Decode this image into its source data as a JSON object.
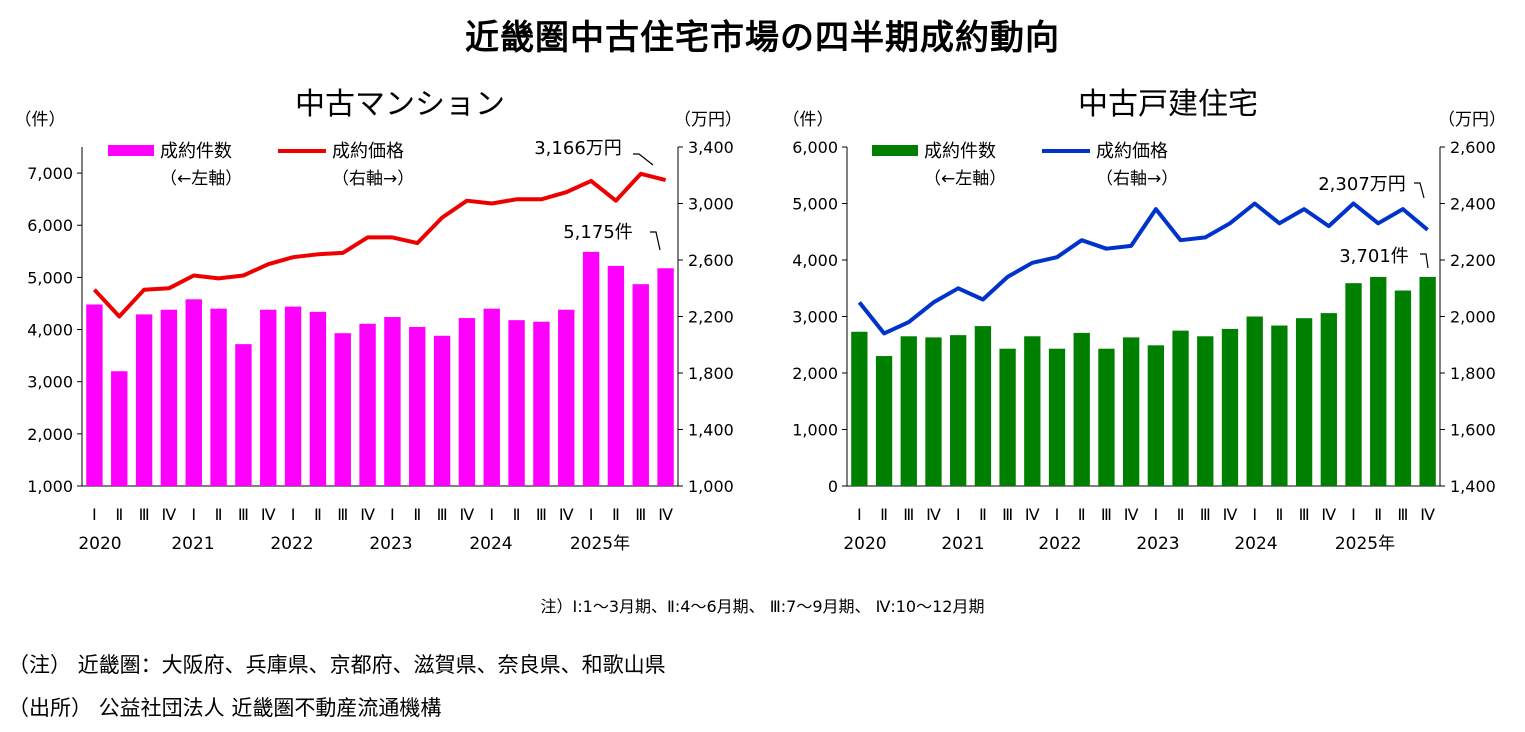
{
  "title": "近畿圏中古住宅市場の四半期成約動向",
  "period_note": "注）Ⅰ:1～3月期、Ⅱ:4～6月期、 Ⅲ:7～9月期、 Ⅳ:10～12月期",
  "footnote": "（注） 近畿圏：大阪府、兵庫県、京都府、滋賀県、奈良県、和歌山県",
  "source": "（出所） 公益社団法人 近畿圏不動産流通機構",
  "colors": {
    "mansion_bar": "#ff00ff",
    "mansion_line": "#ee0000",
    "house_bar": "#008000",
    "house_line": "#0033cc"
  },
  "chart_data": [
    {
      "type": "bar+line",
      "title": "中古マンション",
      "left_unit": "（件）",
      "right_unit": "（万円）",
      "quarter_labels": [
        "Ⅰ",
        "Ⅱ",
        "Ⅲ",
        "Ⅳ",
        "Ⅰ",
        "Ⅱ",
        "Ⅲ",
        "Ⅳ",
        "Ⅰ",
        "Ⅱ",
        "Ⅲ",
        "Ⅳ",
        "Ⅰ",
        "Ⅱ",
        "Ⅲ",
        "Ⅳ",
        "Ⅰ",
        "Ⅱ",
        "Ⅲ",
        "Ⅳ",
        "Ⅰ",
        "Ⅱ",
        "Ⅲ",
        "Ⅳ"
      ],
      "year_labels": [
        "2020",
        "2021",
        "2022",
        "2023",
        "2024",
        "2025年"
      ],
      "left_axis": {
        "min": 1000,
        "max": 7500,
        "ticks": [
          "1,000",
          "2,000",
          "3,000",
          "4,000",
          "5,000",
          "6,000",
          "7,000"
        ],
        "tick_values": [
          1000,
          2000,
          3000,
          4000,
          5000,
          6000,
          7000
        ]
      },
      "right_axis": {
        "min": 1000,
        "max": 3400,
        "ticks": [
          "1,000",
          "1,400",
          "1,800",
          "2,200",
          "2,600",
          "3,000",
          "3,400"
        ],
        "tick_values": [
          1000,
          1400,
          1800,
          2200,
          2600,
          3000,
          3400
        ]
      },
      "bars": {
        "name": "成約件数",
        "axis_note": "（←左軸）",
        "values": [
          4480,
          3200,
          4290,
          4380,
          4580,
          4400,
          3720,
          4380,
          4440,
          4340,
          3930,
          4110,
          4240,
          4050,
          3880,
          4220,
          4400,
          4180,
          4150,
          4380,
          5490,
          5220,
          4870,
          5175
        ]
      },
      "line": {
        "name": "成約価格",
        "axis_note": "（右軸→）",
        "values": [
          2390,
          2200,
          2390,
          2400,
          2490,
          2470,
          2490,
          2570,
          2620,
          2640,
          2650,
          2760,
          2760,
          2720,
          2900,
          3020,
          3000,
          3030,
          3030,
          3080,
          3160,
          3020,
          3210,
          3166
        ]
      },
      "annotation_price": "3,166万円",
      "annotation_count": "5,175件"
    },
    {
      "type": "bar+line",
      "title": "中古戸建住宅",
      "left_unit": "（件）",
      "right_unit": "（万円）",
      "quarter_labels": [
        "Ⅰ",
        "Ⅱ",
        "Ⅲ",
        "Ⅳ",
        "Ⅰ",
        "Ⅱ",
        "Ⅲ",
        "Ⅳ",
        "Ⅰ",
        "Ⅱ",
        "Ⅲ",
        "Ⅳ",
        "Ⅰ",
        "Ⅱ",
        "Ⅲ",
        "Ⅳ",
        "Ⅰ",
        "Ⅱ",
        "Ⅲ",
        "Ⅳ",
        "Ⅰ",
        "Ⅱ",
        "Ⅲ",
        "Ⅳ"
      ],
      "year_labels": [
        "2020",
        "2021",
        "2022",
        "2023",
        "2024",
        "2025年"
      ],
      "left_axis": {
        "min": 0,
        "max": 6000,
        "ticks": [
          "0",
          "1,000",
          "2,000",
          "3,000",
          "4,000",
          "5,000",
          "6,000"
        ],
        "tick_values": [
          0,
          1000,
          2000,
          3000,
          4000,
          5000,
          6000
        ]
      },
      "right_axis": {
        "min": 1400,
        "max": 2600,
        "ticks": [
          "1,400",
          "1,600",
          "1,800",
          "2,000",
          "2,200",
          "2,400",
          "2,600"
        ],
        "tick_values": [
          1400,
          1600,
          1800,
          2000,
          2200,
          2400,
          2600
        ]
      },
      "bars": {
        "name": "成約件数",
        "axis_note": "（←左軸）",
        "values": [
          2730,
          2300,
          2650,
          2630,
          2670,
          2830,
          2430,
          2650,
          2430,
          2710,
          2430,
          2630,
          2490,
          2750,
          2650,
          2780,
          3000,
          2840,
          2970,
          3060,
          3590,
          3700,
          3460,
          3701
        ]
      },
      "line": {
        "name": "成約価格",
        "axis_note": "（右軸→）",
        "values": [
          2050,
          1940,
          1980,
          2050,
          2100,
          2060,
          2140,
          2190,
          2210,
          2270,
          2240,
          2250,
          2380,
          2270,
          2280,
          2330,
          2400,
          2330,
          2380,
          2320,
          2400,
          2330,
          2380,
          2307
        ]
      },
      "annotation_price": "2,307万円",
      "annotation_count": "3,701件"
    }
  ]
}
